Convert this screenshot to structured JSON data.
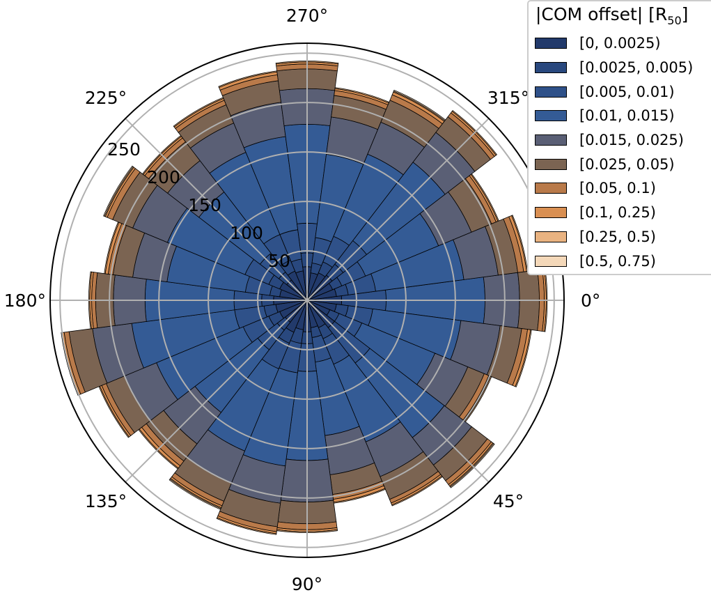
{
  "chart_data": {
    "type": "polar-stacked-bar",
    "theta_direction": "clockwise",
    "theta_zero": "east",
    "theta_tick_labels": [
      "0°",
      "45°",
      "90°",
      "135°",
      "180°",
      "225°",
      "270°",
      "315°"
    ],
    "r_tick_labels": [
      "50",
      "100",
      "150",
      "200",
      "250"
    ],
    "r_ticks": [
      50,
      100,
      150,
      200,
      250
    ],
    "rlim": [
      0,
      260
    ],
    "num_bins": 24,
    "legend_title": "|COM offset| [R",
    "legend_title_sub": "50",
    "legend_title_end": "]",
    "series": [
      {
        "name": "[0, 0.0025)",
        "color": "#223a6b",
        "values": [
          35,
          30,
          25,
          35,
          30,
          28,
          32,
          30,
          35,
          28,
          30,
          32,
          34,
          28,
          30,
          26,
          32,
          30,
          34,
          28,
          30,
          32,
          28,
          30
        ]
      },
      {
        "name": "[0.0025, 0.005)",
        "color": "#29487e",
        "values": [
          15,
          12,
          10,
          15,
          12,
          10,
          12,
          14,
          12,
          10,
          12,
          12,
          12,
          10,
          12,
          10,
          12,
          12,
          14,
          10,
          12,
          14,
          10,
          12
        ]
      },
      {
        "name": "[0.005, 0.01)",
        "color": "#2f5189",
        "values": [
          30,
          25,
          25,
          30,
          28,
          25,
          28,
          30,
          28,
          25,
          28,
          30,
          28,
          25,
          26,
          24,
          28,
          30,
          30,
          26,
          28,
          30,
          26,
          28
        ]
      },
      {
        "name": "[0.01, 0.015)",
        "color": "#345b95",
        "values": [
          100,
          90,
          80,
          95,
          85,
          75,
          90,
          95,
          90,
          80,
          95,
          105,
          90,
          80,
          85,
          78,
          90,
          95,
          100,
          85,
          90,
          100,
          80,
          90
        ]
      },
      {
        "name": "[0.015, 0.025)",
        "color": "#5a5f75",
        "values": [
          35,
          40,
          36,
          35,
          38,
          40,
          42,
          38,
          35,
          40,
          35,
          40,
          32,
          35,
          38,
          40,
          32,
          35,
          36,
          38,
          35,
          38,
          36,
          35
        ]
      },
      {
        "name": "[0.025, 0.05)",
        "color": "#7b6452",
        "values": [
          20,
          22,
          18,
          20,
          25,
          20,
          22,
          24,
          20,
          22,
          20,
          24,
          18,
          20,
          22,
          24,
          20,
          22,
          20,
          22,
          24,
          20,
          22,
          20
        ]
      },
      {
        "name": "[0.05, 0.1)",
        "color": "#b97a4a",
        "values": [
          5,
          6,
          5,
          5,
          4,
          5,
          6,
          5,
          5,
          6,
          5,
          5,
          4,
          5,
          6,
          5,
          5,
          6,
          5,
          5,
          6,
          5,
          5,
          6
        ]
      },
      {
        "name": "[0.1, 0.25)",
        "color": "#d98f52",
        "values": [
          2,
          3,
          2,
          2,
          2,
          3,
          2,
          2,
          2,
          3,
          2,
          2,
          2,
          3,
          2,
          2,
          2,
          3,
          2,
          2,
          3,
          2,
          2,
          3
        ]
      },
      {
        "name": "[0.25, 0.5)",
        "color": "#e9b381",
        "values": [
          1,
          1,
          1,
          1,
          1,
          1,
          1,
          1,
          1,
          1,
          1,
          1,
          1,
          1,
          1,
          1,
          1,
          1,
          1,
          1,
          1,
          1,
          1,
          1
        ]
      },
      {
        "name": "[0.5, 0.75)",
        "color": "#f4d8b9",
        "values": [
          0,
          0,
          0,
          1,
          0,
          0,
          0,
          0,
          1,
          0,
          0,
          0,
          0,
          0,
          1,
          0,
          0,
          0,
          0,
          0,
          1,
          0,
          0,
          0
        ]
      }
    ]
  }
}
